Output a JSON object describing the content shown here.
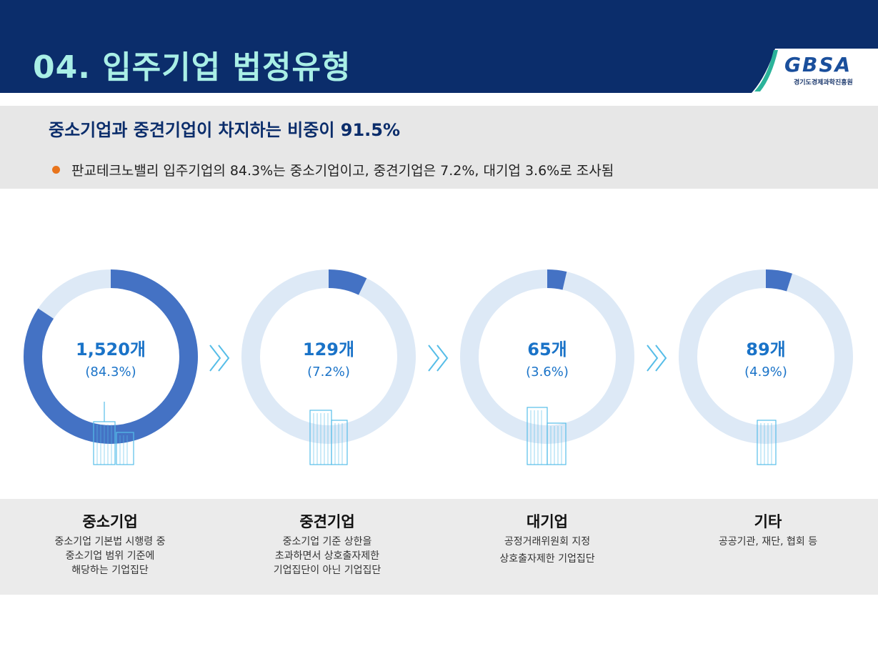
{
  "header": {
    "title": "04. 입주기업 법정유형",
    "logo": {
      "wordmark": "GBSA",
      "subtitle": "경기도경제과학진흥원"
    }
  },
  "summary": {
    "headline": "중소기업과 중견기업이 차지하는 비중이 91.5%",
    "bullet": "판교테크노밸리 입주기업의 84.3%는 중소기업이고, 중견기업은 7.2%, 대기업 3.6%로 조사됨"
  },
  "chart_data": {
    "type": "pie",
    "categories": [
      "중소기업",
      "중견기업",
      "대기업",
      "기타"
    ],
    "values": [
      1520,
      129,
      65,
      89
    ],
    "center_labels": [
      "1,520개",
      "129개",
      "65개",
      "89개"
    ],
    "percent_labels": [
      "(84.3%)",
      "(7.2%)",
      "(3.6%)",
      "(4.9%)"
    ],
    "percents": [
      84.3,
      7.2,
      3.6,
      4.9
    ],
    "colors": {
      "filled": "#4472c4",
      "track": "#dde9f6",
      "label": "#1a73c8"
    }
  },
  "categories": [
    {
      "title": "중소기업",
      "desc": [
        "중소기업 기본법 시행령 중",
        "중소기업 범위 기준에",
        "해당하는 기업집단"
      ]
    },
    {
      "title": "중견기업",
      "desc": [
        "중소기업 기준 상한을",
        "초과하면서 상호출자제한",
        "기업집단이 아닌 기업집단"
      ]
    },
    {
      "title": "대기업",
      "desc": [
        "공정거래위원회 지정",
        "상호출자제한 기업집단"
      ]
    },
    {
      "title": "기타",
      "desc": [
        "공공기관, 재단, 협회 등"
      ]
    }
  ],
  "icons": [
    "building-icon",
    "chevron-right-icon"
  ]
}
